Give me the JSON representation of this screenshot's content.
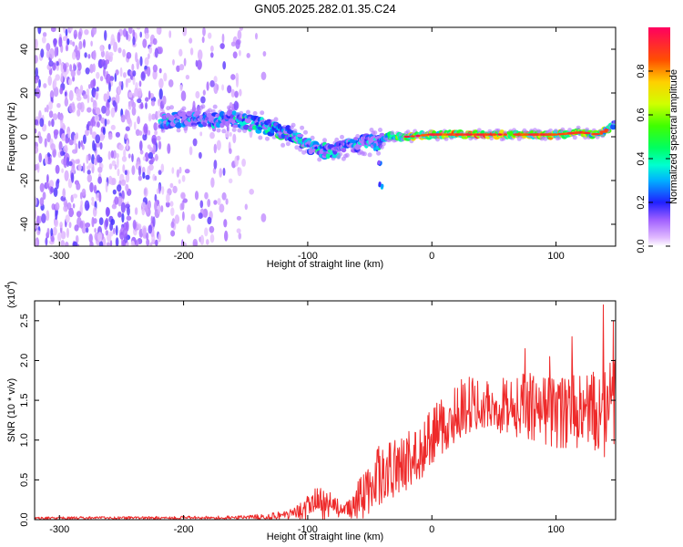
{
  "title": "GN05.2025.282.01.35.C24",
  "chart_data": [
    {
      "type": "heatmap",
      "xlabel": "Height of straight line (km)",
      "ylabel": "Frequency (Hz)",
      "xlim": [
        -320,
        148
      ],
      "ylim": [
        -50,
        50
      ],
      "x_ticks": [
        -300,
        -200,
        -100,
        0,
        100
      ],
      "y_ticks": [
        -40,
        -20,
        0,
        20,
        40
      ],
      "colorbar": {
        "label": "Normalized spectral amplitude",
        "range": [
          0,
          1
        ],
        "ticks": [
          0.0,
          0.2,
          0.4,
          0.6,
          0.8
        ]
      },
      "noise_regions": [
        {
          "from": -320,
          "to": -218,
          "density": "high"
        },
        {
          "from": -218,
          "to": -152,
          "density": "medium"
        },
        {
          "from": -152,
          "to": -125,
          "density": "low"
        }
      ],
      "ridge": [
        {
          "x": -218,
          "freq": 7,
          "amp": 0.45
        },
        {
          "x": -200,
          "freq": 8,
          "amp": 0.35
        },
        {
          "x": -160,
          "freq": 8,
          "amp": 0.4
        },
        {
          "x": -150,
          "freq": 7,
          "amp": 0.5
        },
        {
          "x": -130,
          "freq": 4,
          "amp": 0.5
        },
        {
          "x": -110,
          "freq": 0,
          "amp": 0.45
        },
        {
          "x": -95,
          "freq": -5,
          "amp": 0.45
        },
        {
          "x": -80,
          "freq": -7,
          "amp": 0.4
        },
        {
          "x": -70,
          "freq": -5,
          "amp": 0.4
        },
        {
          "x": -55,
          "freq": -2,
          "amp": 0.4
        },
        {
          "x": -45,
          "freq": -3,
          "amp": 0.4
        },
        {
          "x": -35,
          "freq": 0,
          "amp": 0.55
        },
        {
          "x": -20,
          "freq": 0,
          "amp": 0.7
        },
        {
          "x": 0,
          "freq": 1,
          "amp": 0.75
        },
        {
          "x": 20,
          "freq": 1,
          "amp": 0.85
        },
        {
          "x": 40,
          "freq": 1,
          "amp": 0.9
        },
        {
          "x": 60,
          "freq": 1,
          "amp": 0.9
        },
        {
          "x": 80,
          "freq": 1,
          "amp": 0.85
        },
        {
          "x": 100,
          "freq": 1,
          "amp": 0.8
        },
        {
          "x": 120,
          "freq": 2,
          "amp": 0.75
        },
        {
          "x": 135,
          "freq": 1,
          "amp": 0.7
        },
        {
          "x": 148,
          "freq": 6,
          "amp": 0.6
        }
      ],
      "ridge_branch": [
        {
          "x": -45,
          "freq": -5
        },
        {
          "x": -42,
          "freq": -12
        },
        {
          "x": -41,
          "freq": -22
        }
      ]
    },
    {
      "type": "line",
      "xlabel": "Height of straight line (km)",
      "ylabel": "SNR (10 * v/v)",
      "y_scale_label": "(x10",
      "y_scale_exp": "4",
      "y_scale_close": ")",
      "xlim": [
        -320,
        148
      ],
      "ylim": [
        0,
        2.75
      ],
      "x_ticks": [
        -300,
        -200,
        -100,
        0,
        100
      ],
      "y_ticks": [
        "0.0",
        "0.5",
        "1.0",
        "1.5",
        "2.0",
        "2.5"
      ],
      "color": "#ee2a2a",
      "envelope": [
        {
          "x": -320,
          "mean": 0.02,
          "amp": 0.015
        },
        {
          "x": -150,
          "mean": 0.03,
          "amp": 0.02
        },
        {
          "x": -125,
          "mean": 0.05,
          "amp": 0.05
        },
        {
          "x": -110,
          "mean": 0.08,
          "amp": 0.08
        },
        {
          "x": -100,
          "mean": 0.15,
          "amp": 0.15
        },
        {
          "x": -90,
          "mean": 0.25,
          "amp": 0.22
        },
        {
          "x": -80,
          "mean": 0.2,
          "amp": 0.18
        },
        {
          "x": -73,
          "mean": 0.1,
          "amp": 0.08
        },
        {
          "x": -65,
          "mean": 0.15,
          "amp": 0.12
        },
        {
          "x": -55,
          "mean": 0.35,
          "amp": 0.3
        },
        {
          "x": -45,
          "mean": 0.55,
          "amp": 0.35
        },
        {
          "x": -35,
          "mean": 0.65,
          "amp": 0.35
        },
        {
          "x": -25,
          "mean": 0.7,
          "amp": 0.35
        },
        {
          "x": -10,
          "mean": 0.8,
          "amp": 0.4
        },
        {
          "x": 0,
          "mean": 1.05,
          "amp": 0.35
        },
        {
          "x": 10,
          "mean": 1.25,
          "amp": 0.35
        },
        {
          "x": 25,
          "mean": 1.45,
          "amp": 0.35
        },
        {
          "x": 40,
          "mean": 1.5,
          "amp": 0.3
        },
        {
          "x": 60,
          "mean": 1.45,
          "amp": 0.35
        },
        {
          "x": 80,
          "mean": 1.45,
          "amp": 0.4
        },
        {
          "x": 100,
          "mean": 1.4,
          "amp": 0.45
        },
        {
          "x": 120,
          "mean": 1.4,
          "amp": 0.45
        },
        {
          "x": 135,
          "mean": 1.35,
          "amp": 0.55
        },
        {
          "x": 148,
          "mean": 1.5,
          "amp": 0.55
        }
      ],
      "peaks": [
        {
          "x": 75,
          "y": 2.15
        },
        {
          "x": 95,
          "y": 2.05
        },
        {
          "x": 113,
          "y": 2.3
        },
        {
          "x": 138,
          "y": 2.7
        },
        {
          "x": 146,
          "y": 2.5
        }
      ]
    }
  ]
}
